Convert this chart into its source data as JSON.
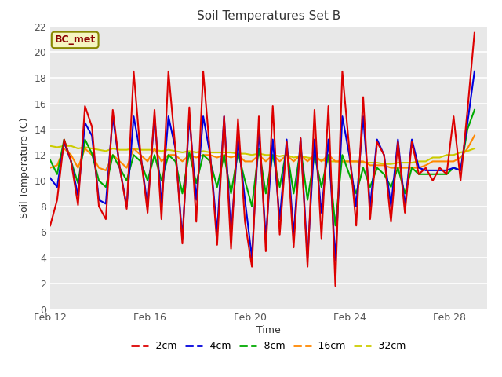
{
  "title": "Soil Temperatures Set B",
  "xlabel": "Time",
  "ylabel": "Soil Temperature (C)",
  "ylim": [
    0,
    22
  ],
  "yticks": [
    0,
    2,
    4,
    6,
    8,
    10,
    12,
    14,
    16,
    18,
    20,
    22
  ],
  "annotation": "BC_met",
  "fig_bg": "#ffffff",
  "plot_bg": "#e8e8e8",
  "colors": {
    "-2cm": "#dd0000",
    "-4cm": "#0000dd",
    "-8cm": "#00aa00",
    "-16cm": "#ff8800",
    "-32cm": "#cccc00"
  },
  "x_tick_labels": [
    "Feb 12",
    "Feb 16",
    "Feb 20",
    "Feb 24",
    "Feb 28"
  ],
  "x_tick_positions": [
    0,
    4,
    8,
    12,
    16
  ],
  "data_2cm": [
    6.5,
    8.5,
    13.2,
    11.5,
    8.1,
    15.8,
    14.2,
    8.0,
    7.0,
    15.5,
    11.0,
    7.8,
    18.5,
    12.0,
    7.5,
    15.5,
    7.0,
    18.5,
    12.5,
    5.1,
    15.7,
    6.8,
    18.5,
    12.0,
    5.0,
    15.0,
    4.7,
    14.8,
    6.8,
    3.3,
    15.0,
    4.5,
    15.8,
    5.8,
    13.0,
    4.8,
    13.3,
    3.3,
    15.5,
    5.5,
    15.8,
    1.8,
    18.5,
    12.5,
    6.5,
    16.5,
    7.0,
    13.0,
    12.0,
    6.8,
    13.0,
    7.5,
    13.0,
    10.5,
    11.0,
    10.0,
    11.0,
    10.5,
    15.0,
    10.0,
    15.5,
    21.5
  ],
  "data_4cm": [
    10.2,
    9.5,
    13.0,
    11.5,
    8.8,
    14.5,
    13.5,
    8.5,
    8.2,
    15.0,
    11.0,
    8.0,
    15.0,
    12.0,
    8.0,
    15.0,
    8.2,
    15.0,
    12.5,
    5.5,
    15.0,
    8.5,
    15.0,
    12.0,
    6.0,
    15.0,
    5.8,
    13.3,
    8.5,
    4.0,
    14.0,
    5.5,
    13.2,
    7.0,
    13.2,
    5.8,
    13.3,
    4.0,
    13.2,
    7.5,
    13.2,
    3.8,
    15.0,
    12.0,
    8.0,
    15.0,
    8.0,
    13.2,
    12.0,
    8.0,
    13.2,
    8.0,
    13.2,
    11.0,
    10.8,
    10.8,
    10.8,
    10.8,
    11.0,
    10.8,
    14.5,
    18.5
  ],
  "data_8cm": [
    11.6,
    10.5,
    13.2,
    11.5,
    9.8,
    13.2,
    12.1,
    10.0,
    9.5,
    12.0,
    11.0,
    10.0,
    12.0,
    11.5,
    10.0,
    12.0,
    10.0,
    12.0,
    11.5,
    9.0,
    12.2,
    9.8,
    12.0,
    11.5,
    9.5,
    12.0,
    9.0,
    12.2,
    10.0,
    8.0,
    12.5,
    9.0,
    12.0,
    9.5,
    12.5,
    9.0,
    12.5,
    8.5,
    12.0,
    9.5,
    12.0,
    6.5,
    12.0,
    10.5,
    9.0,
    11.0,
    9.5,
    11.0,
    10.5,
    9.5,
    11.0,
    9.0,
    11.0,
    10.5,
    10.5,
    10.5,
    10.5,
    10.5,
    11.0,
    10.8,
    14.0,
    15.5
  ],
  "data_16cm": [
    11.0,
    11.2,
    12.5,
    12.0,
    11.0,
    12.5,
    12.0,
    11.0,
    10.8,
    12.0,
    11.5,
    11.0,
    12.5,
    12.0,
    11.5,
    12.5,
    11.5,
    12.0,
    12.0,
    11.5,
    12.0,
    11.8,
    12.0,
    12.0,
    11.8,
    12.0,
    11.8,
    12.0,
    11.5,
    11.5,
    12.0,
    11.5,
    12.0,
    11.5,
    12.0,
    11.5,
    12.0,
    11.5,
    12.0,
    11.5,
    12.0,
    11.5,
    11.5,
    11.5,
    11.5,
    11.5,
    11.2,
    11.2,
    11.2,
    11.0,
    11.0,
    11.0,
    11.0,
    11.0,
    11.2,
    11.5,
    11.5,
    11.5,
    11.5,
    11.8,
    12.5,
    13.5
  ],
  "data_32cm": [
    12.7,
    12.6,
    12.7,
    12.7,
    12.5,
    12.6,
    12.5,
    12.4,
    12.3,
    12.5,
    12.4,
    12.4,
    12.5,
    12.4,
    12.4,
    12.4,
    12.3,
    12.4,
    12.3,
    12.2,
    12.3,
    12.2,
    12.3,
    12.2,
    12.2,
    12.2,
    12.2,
    12.1,
    12.1,
    12.0,
    12.1,
    12.0,
    12.0,
    11.9,
    12.0,
    11.8,
    11.9,
    11.8,
    11.7,
    11.6,
    11.5,
    11.5,
    11.5,
    11.5,
    11.5,
    11.4,
    11.4,
    11.4,
    11.3,
    11.3,
    11.4,
    11.4,
    11.4,
    11.5,
    11.5,
    11.8,
    11.8,
    12.0,
    12.0,
    12.2,
    12.3,
    12.5
  ]
}
